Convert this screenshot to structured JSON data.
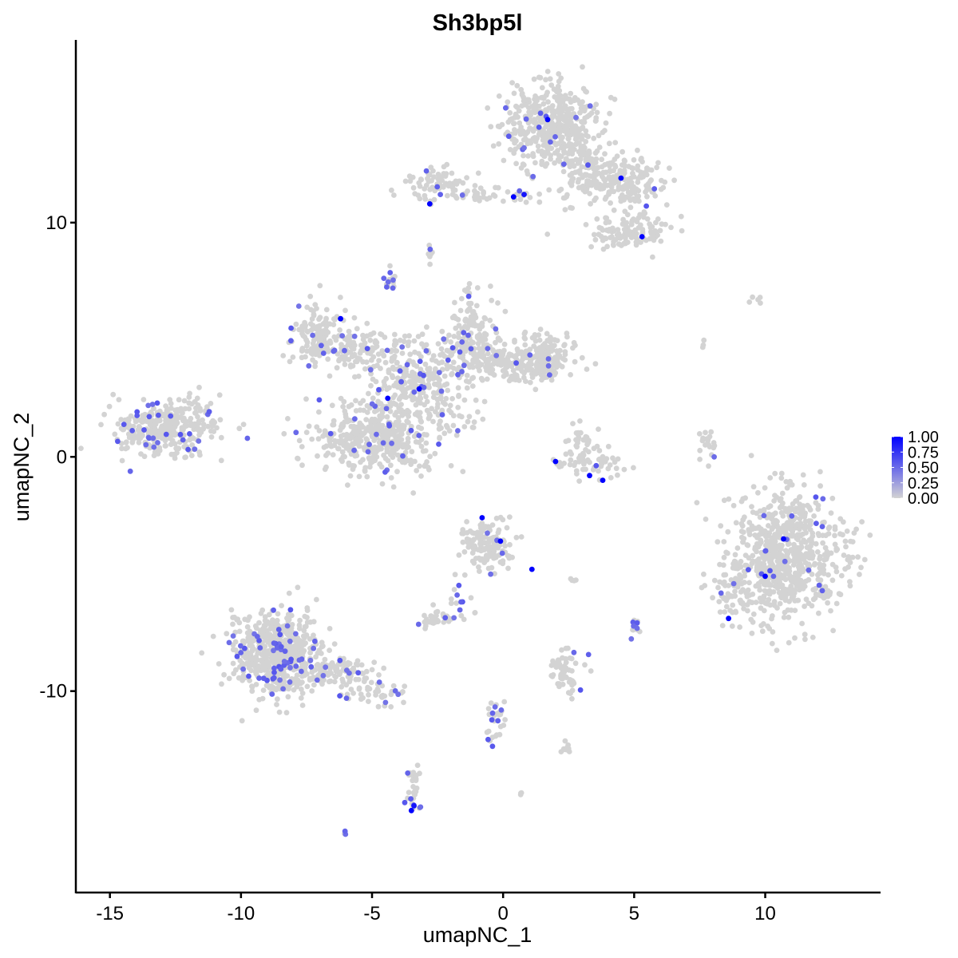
{
  "chart_data": {
    "type": "scatter",
    "title": "Sh3bp5l",
    "xlabel": "umapNC_1",
    "ylabel": "umapNC_2",
    "xlim": [
      -16.3,
      14.4
    ],
    "ylim": [
      -18.6,
      17.8
    ],
    "xticks": [
      -15,
      -10,
      -5,
      0,
      5,
      10
    ],
    "yticks": [
      -10,
      0,
      10
    ],
    "grid": false,
    "colors": {
      "low": "#D3D3D3",
      "high": "#0000FF"
    },
    "legend": {
      "position": "right",
      "ticks": [
        "1.00",
        "0.75",
        "0.50",
        "0.25",
        "0.00"
      ],
      "range": [
        0,
        1
      ]
    },
    "clusters": [
      {
        "cx": 1.8,
        "cy": 14.2,
        "sx": 0.9,
        "sy": 0.9,
        "n": 450,
        "expr": 0.02
      },
      {
        "cx": 4.3,
        "cy": 11.8,
        "sx": 0.9,
        "sy": 0.6,
        "n": 200,
        "expr": 0.03
      },
      {
        "cx": 4.8,
        "cy": 9.6,
        "sx": 0.7,
        "sy": 0.4,
        "n": 120,
        "expr": 0.02
      },
      {
        "cx": 3.2,
        "cy": 12.3,
        "sx": 0.5,
        "sy": 0.8,
        "n": 70,
        "expr": 0.02
      },
      {
        "cx": -1.2,
        "cy": 11.2,
        "sx": 1.4,
        "sy": 0.2,
        "n": 60,
        "expr": 0.02
      },
      {
        "cx": -2.6,
        "cy": 11.8,
        "sx": 0.5,
        "sy": 0.3,
        "n": 60,
        "expr": 0.02
      },
      {
        "cx": -7.1,
        "cy": 5.3,
        "sx": 0.5,
        "sy": 0.7,
        "n": 120,
        "expr": 0.08
      },
      {
        "cx": -5.5,
        "cy": 4.6,
        "sx": 1.0,
        "sy": 0.4,
        "n": 120,
        "expr": 0.05
      },
      {
        "cx": -3.4,
        "cy": 3.2,
        "sx": 0.9,
        "sy": 0.8,
        "n": 250,
        "expr": 0.06
      },
      {
        "cx": -4.9,
        "cy": 0.8,
        "sx": 1.2,
        "sy": 0.8,
        "n": 420,
        "expr": 0.04
      },
      {
        "cx": -1.2,
        "cy": 5.1,
        "sx": 0.5,
        "sy": 0.9,
        "n": 160,
        "expr": 0.07
      },
      {
        "cx": 0.3,
        "cy": 4.0,
        "sx": 1.2,
        "sy": 0.4,
        "n": 170,
        "expr": 0.05
      },
      {
        "cx": 1.6,
        "cy": 4.3,
        "sx": 0.6,
        "sy": 0.5,
        "n": 130,
        "expr": 0.02
      },
      {
        "cx": -1.8,
        "cy": 1.5,
        "sx": 0.5,
        "sy": 0.3,
        "n": 25,
        "expr": 0.08
      },
      {
        "cx": -12.8,
        "cy": 1.2,
        "sx": 1.0,
        "sy": 0.55,
        "n": 320,
        "expr": 0.09
      },
      {
        "cx": -11.7,
        "cy": 2.3,
        "sx": 0.3,
        "sy": 0.3,
        "n": 15,
        "expr": 0.0
      },
      {
        "cx": 3.3,
        "cy": -0.2,
        "sx": 0.8,
        "sy": 0.3,
        "n": 60,
        "expr": 0.04
      },
      {
        "cx": 3.0,
        "cy": 0.7,
        "sx": 0.3,
        "sy": 0.3,
        "n": 25,
        "expr": 0.0
      },
      {
        "cx": 10.7,
        "cy": -4.3,
        "sx": 1.1,
        "sy": 1.4,
        "n": 750,
        "expr": 0.02
      },
      {
        "cx": 8.8,
        "cy": -5.8,
        "sx": 0.3,
        "sy": 0.6,
        "n": 40,
        "expr": 0.05
      },
      {
        "cx": -8.6,
        "cy": -8.4,
        "sx": 0.9,
        "sy": 0.9,
        "n": 600,
        "expr": 0.08
      },
      {
        "cx": -6.3,
        "cy": -9.2,
        "sx": 0.7,
        "sy": 0.35,
        "n": 90,
        "expr": 0.06
      },
      {
        "cx": -4.7,
        "cy": -10.1,
        "sx": 0.6,
        "sy": 0.25,
        "n": 40,
        "expr": 0.05
      },
      {
        "cx": -0.6,
        "cy": -3.7,
        "sx": 0.45,
        "sy": 0.5,
        "n": 150,
        "expr": 0.04
      },
      {
        "cx": -1.6,
        "cy": -5.6,
        "sx": 0.3,
        "sy": 0.6,
        "n": 15,
        "expr": 0.3
      },
      {
        "cx": -2.4,
        "cy": -6.9,
        "sx": 0.4,
        "sy": 0.2,
        "n": 40,
        "expr": 0.1
      },
      {
        "cx": 2.4,
        "cy": -9.2,
        "sx": 0.35,
        "sy": 0.5,
        "n": 60,
        "expr": 0.1
      },
      {
        "cx": -3.4,
        "cy": -14.3,
        "sx": 0.15,
        "sy": 0.5,
        "n": 30,
        "expr": 0.2
      },
      {
        "cx": 7.8,
        "cy": 0.4,
        "sx": 0.2,
        "sy": 0.4,
        "n": 20,
        "expr": 0.1
      },
      {
        "cx": 5.0,
        "cy": -7.3,
        "sx": 0.1,
        "sy": 0.2,
        "n": 15,
        "expr": 0.3
      },
      {
        "cx": -0.3,
        "cy": -11.3,
        "sx": 0.2,
        "sy": 0.6,
        "n": 30,
        "expr": 0.1
      },
      {
        "cx": 2.3,
        "cy": -12.4,
        "sx": 0.2,
        "sy": 0.15,
        "n": 10,
        "expr": 0.1
      },
      {
        "cx": -4.3,
        "cy": 7.5,
        "sx": 0.1,
        "sy": 0.3,
        "n": 15,
        "expr": 0.2
      },
      {
        "cx": -2.8,
        "cy": 8.9,
        "sx": 0.1,
        "sy": 0.2,
        "n": 8,
        "expr": 0.1
      },
      {
        "cx": 9.6,
        "cy": 6.8,
        "sx": 0.2,
        "sy": 0.1,
        "n": 5,
        "expr": 0.0
      },
      {
        "cx": 7.6,
        "cy": 4.8,
        "sx": 0.05,
        "sy": 0.1,
        "n": 3,
        "expr": 0.0
      },
      {
        "cx": -6.0,
        "cy": -16.1,
        "sx": 0.05,
        "sy": 0.05,
        "n": 3,
        "expr": 0.3
      },
      {
        "cx": 0.7,
        "cy": -14.4,
        "sx": 0.05,
        "sy": 0.05,
        "n": 3,
        "expr": 0.0
      },
      {
        "cx": 2.8,
        "cy": -5.3,
        "sx": 0.3,
        "sy": 0.05,
        "n": 4,
        "expr": 0.0
      }
    ],
    "high_points": [
      [
        1.7,
        14.4,
        1.0
      ],
      [
        0.4,
        11.1,
        1.0
      ],
      [
        0.8,
        11.2,
        0.9
      ],
      [
        -2.8,
        10.8,
        1.0
      ],
      [
        4.5,
        11.9,
        1.0
      ],
      [
        5.3,
        9.4,
        1.0
      ],
      [
        -6.2,
        5.9,
        1.0
      ],
      [
        -4.4,
        2.5,
        1.0
      ],
      [
        -3.2,
        2.9,
        1.0
      ],
      [
        2.0,
        -0.2,
        1.0
      ],
      [
        3.3,
        -0.8,
        1.0
      ],
      [
        3.8,
        -1.0,
        1.0
      ],
      [
        -0.8,
        -2.6,
        1.0
      ],
      [
        -0.1,
        -3.6,
        1.0
      ],
      [
        1.1,
        -4.8,
        1.0
      ],
      [
        10.0,
        -5.1,
        1.0
      ],
      [
        10.7,
        -3.5,
        1.0
      ],
      [
        8.6,
        -6.9,
        1.0
      ],
      [
        -3.5,
        -15.1,
        1.0
      ],
      [
        -3.4,
        -14.9,
        0.9
      ]
    ]
  }
}
